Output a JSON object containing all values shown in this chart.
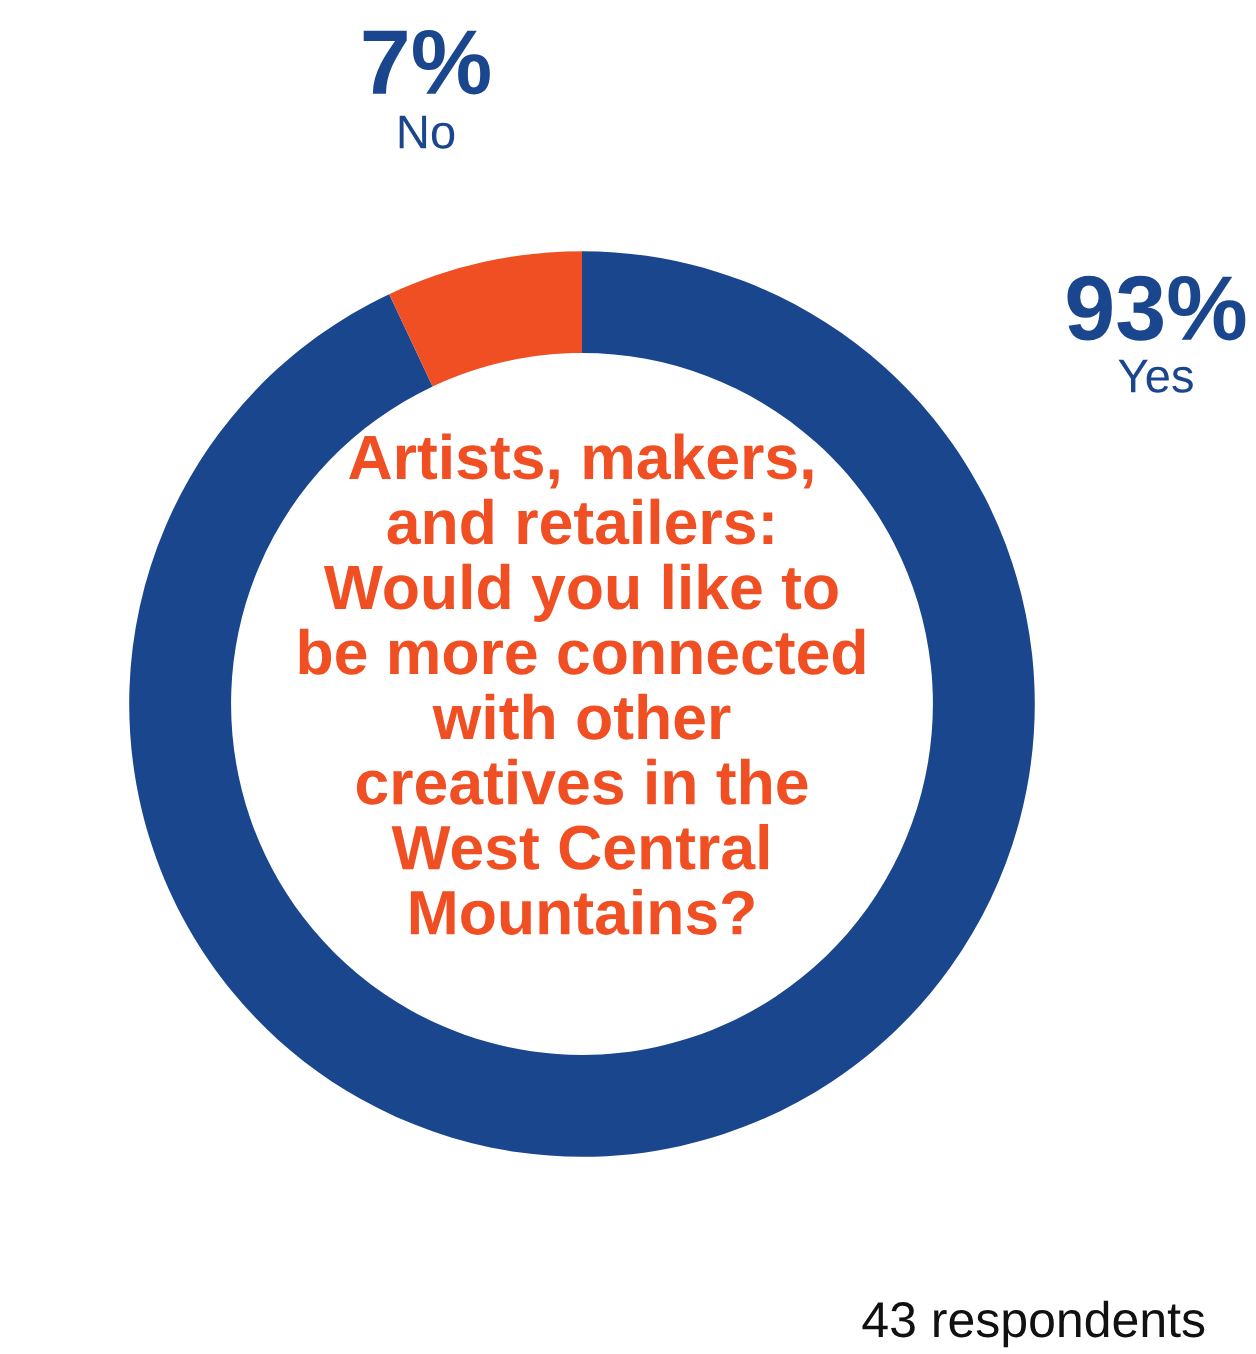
{
  "chart_data": {
    "type": "donut",
    "title": "Artists, makers,\nand retailers:\nWould you like to\nbe more connected\nwith other\ncreatives in the\nWest Central\nMountains?",
    "categories": [
      "Yes",
      "No"
    ],
    "values": [
      93,
      7
    ],
    "value_labels": [
      "93%",
      "7%"
    ],
    "colors": [
      "#1a468e",
      "#f04e23"
    ],
    "annotations": [
      "43 respondents"
    ],
    "legend": false
  }
}
